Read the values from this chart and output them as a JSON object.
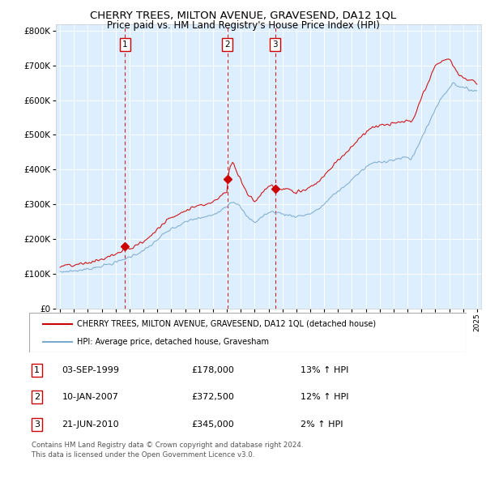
{
  "title": "CHERRY TREES, MILTON AVENUE, GRAVESEND, DA12 1QL",
  "subtitle": "Price paid vs. HM Land Registry's House Price Index (HPI)",
  "legend_line1": "CHERRY TREES, MILTON AVENUE, GRAVESEND, DA12 1QL (detached house)",
  "legend_line2": "HPI: Average price, detached house, Gravesham",
  "footer_line1": "Contains HM Land Registry data © Crown copyright and database right 2024.",
  "footer_line2": "This data is licensed under the Open Government Licence v3.0.",
  "table_rows": [
    {
      "num": "1",
      "date": "03-SEP-1999",
      "price": "£178,000",
      "hpi": "13% ↑ HPI"
    },
    {
      "num": "2",
      "date": "10-JAN-2007",
      "price": "£372,500",
      "hpi": "12% ↑ HPI"
    },
    {
      "num": "3",
      "date": "21-JUN-2010",
      "price": "£345,000",
      "hpi": "2% ↑ HPI"
    }
  ],
  "sale_dates": [
    1999.67,
    2007.03,
    2010.47
  ],
  "sale_vals": [
    178000,
    372500,
    345000
  ],
  "red_color": "#cc0000",
  "blue_color": "#7aaacc",
  "plot_bg": "#ddeeff",
  "ylim": [
    0,
    820000
  ],
  "yticks": [
    0,
    100000,
    200000,
    300000,
    400000,
    500000,
    600000,
    700000,
    800000
  ],
  "xlim_start": 1994.7,
  "xlim_end": 2025.3
}
